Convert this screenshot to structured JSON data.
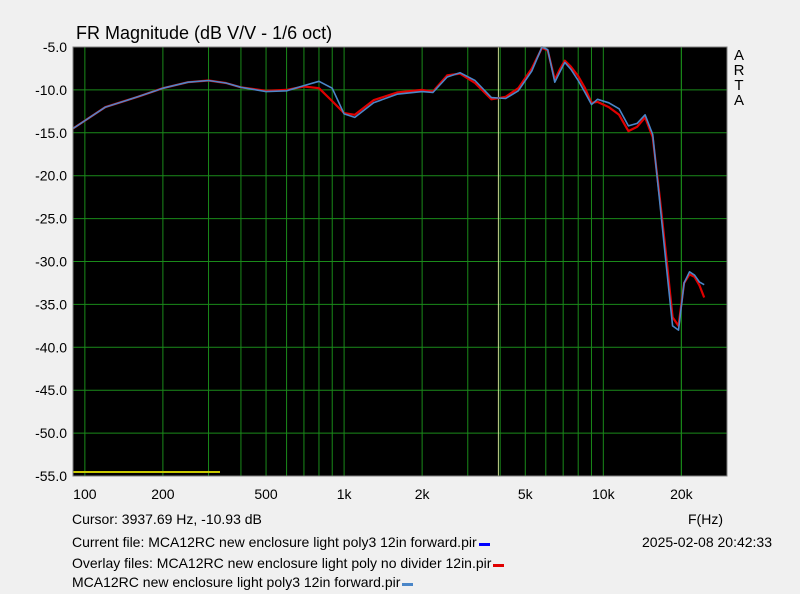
{
  "chart_data": {
    "type": "line",
    "title": "FR Magnitude (dB V/V - 1/6 oct)",
    "xlabel": "F(Hz)",
    "ylabel": "",
    "x_scale": "log",
    "xlim": [
      90,
      30000
    ],
    "ylim": [
      -55,
      -5
    ],
    "y_ticks": [
      -5,
      -10,
      -15,
      -20,
      -25,
      -30,
      -35,
      -40,
      -45,
      -50,
      -55
    ],
    "y_tick_labels": [
      "-5.0",
      "-10.0",
      "-15.0",
      "-20.0",
      "-25.0",
      "-30.0",
      "-35.0",
      "-40.0",
      "-45.0",
      "-50.0",
      "-55.0"
    ],
    "x_ticks": [
      100,
      200,
      500,
      1000,
      2000,
      5000,
      10000,
      20000
    ],
    "x_tick_labels": [
      "100",
      "200",
      "500",
      "1k",
      "2k",
      "5k",
      "10k",
      "20k"
    ],
    "grid": true,
    "cursor_x": 3937.69,
    "series": [
      {
        "color": "#e00000",
        "x": [
          90,
          120,
          160,
          200,
          250,
          300,
          350,
          400,
          500,
          600,
          700,
          800,
          900,
          1000,
          1100,
          1300,
          1600,
          2000,
          2200,
          2500,
          2800,
          3200,
          3700,
          4200,
          4700,
          5300,
          5800,
          6100,
          6500,
          6800,
          7100,
          7500,
          8000,
          8500,
          9000,
          9500,
          10500,
          11500,
          12500,
          13500,
          14500,
          15500,
          16500,
          17500,
          18500,
          19500,
          20500,
          21500,
          22500,
          23500,
          24500
        ],
        "y": [
          -14.5,
          -12.0,
          -10.8,
          -9.8,
          -9.1,
          -8.9,
          -9.2,
          -9.7,
          -10.1,
          -10.0,
          -9.6,
          -9.8,
          -11.3,
          -12.7,
          -12.9,
          -11.2,
          -10.3,
          -10.0,
          -10.2,
          -8.3,
          -8.1,
          -9.2,
          -11.1,
          -10.8,
          -9.8,
          -7.5,
          -5.1,
          -5.4,
          -8.8,
          -7.6,
          -6.6,
          -7.3,
          -8.4,
          -9.8,
          -11.5,
          -11.4,
          -12.0,
          -12.9,
          -14.8,
          -14.3,
          -13.2,
          -15.5,
          -22.5,
          -29.5,
          -36.5,
          -37.5,
          -32.5,
          -31.5,
          -31.8,
          -32.8,
          -34.2
        ]
      },
      {
        "color": "#4a86c8",
        "x": [
          90,
          120,
          160,
          200,
          250,
          300,
          350,
          400,
          500,
          600,
          700,
          800,
          900,
          1000,
          1100,
          1300,
          1600,
          2000,
          2200,
          2500,
          2800,
          3200,
          3700,
          4200,
          4700,
          5300,
          5800,
          6100,
          6500,
          6800,
          7100,
          7500,
          8000,
          8500,
          9000,
          9500,
          10500,
          11500,
          12500,
          13500,
          14500,
          15500,
          16500,
          17500,
          18500,
          19500,
          20500,
          21500,
          22500,
          23500,
          24500
        ],
        "y": [
          -14.5,
          -12.0,
          -10.8,
          -9.8,
          -9.1,
          -8.9,
          -9.2,
          -9.7,
          -10.2,
          -10.1,
          -9.5,
          -9.0,
          -9.8,
          -12.8,
          -13.2,
          -11.5,
          -10.5,
          -10.2,
          -10.3,
          -8.5,
          -8.0,
          -8.9,
          -10.9,
          -11.0,
          -10.1,
          -7.8,
          -5.0,
          -5.3,
          -9.1,
          -7.9,
          -6.8,
          -7.6,
          -8.9,
          -10.3,
          -11.7,
          -11.1,
          -11.5,
          -12.2,
          -14.2,
          -13.9,
          -12.9,
          -15.2,
          -23.0,
          -30.5,
          -37.5,
          -38.0,
          -32.5,
          -31.2,
          -31.6,
          -32.4,
          -32.7
        ]
      }
    ]
  },
  "readouts": {
    "cursor": "Cursor: 3937.69 Hz, -10.93 dB",
    "current_file": "Current file: MCA12RC new enclosure light poly3 12in forward.pir",
    "overlay_files": "Overlay files: MCA12RC new enclosure light poly no divider 12in.pir",
    "overlay_file_2": "MCA12RC new enclosure light poly3 12in forward.pir",
    "timestamp": "2025-02-08  20:42:33",
    "arta_letters": [
      "A",
      "R",
      "T",
      "A"
    ]
  },
  "colors": {
    "plot_background": "#000000",
    "grid": "#1a8a1a",
    "cursor": "#c8d890",
    "marker": "#c8c800",
    "current_file_swatch": "#0000ff",
    "overlay_swatch_1": "#e00000",
    "overlay_swatch_2": "#4a86c8"
  }
}
